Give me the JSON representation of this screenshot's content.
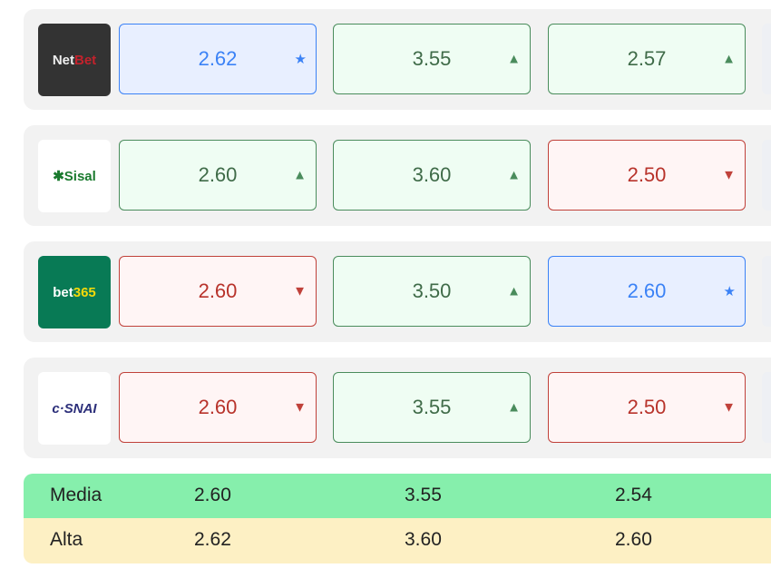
{
  "rows": [
    {
      "bookmaker": "NetBet",
      "odds": [
        {
          "value": "2.62",
          "trend": "best",
          "icon": "star-icon"
        },
        {
          "value": "3.55",
          "trend": "up",
          "icon": "triangle-up-icon"
        },
        {
          "value": "2.57",
          "trend": "up",
          "icon": "triangle-up-icon"
        }
      ]
    },
    {
      "bookmaker": "Sisal",
      "odds": [
        {
          "value": "2.60",
          "trend": "up",
          "icon": "triangle-up-icon"
        },
        {
          "value": "3.60",
          "trend": "up",
          "icon": "triangle-up-icon"
        },
        {
          "value": "2.50",
          "trend": "down",
          "icon": "triangle-down-icon"
        }
      ]
    },
    {
      "bookmaker": "bet365",
      "odds": [
        {
          "value": "2.60",
          "trend": "down",
          "icon": "triangle-down-icon"
        },
        {
          "value": "3.50",
          "trend": "up",
          "icon": "triangle-up-icon"
        },
        {
          "value": "2.60",
          "trend": "best",
          "icon": "star-icon"
        }
      ]
    },
    {
      "bookmaker": "SNAI",
      "odds": [
        {
          "value": "2.60",
          "trend": "down",
          "icon": "triangle-down-icon"
        },
        {
          "value": "3.55",
          "trend": "up",
          "icon": "triangle-up-icon"
        },
        {
          "value": "2.50",
          "trend": "down",
          "icon": "triangle-down-icon"
        }
      ]
    }
  ],
  "summary": [
    {
      "label": "Media",
      "values": [
        "2.60",
        "3.55",
        "2.54"
      ],
      "color": "#86efac"
    },
    {
      "label": "Alta",
      "values": [
        "2.62",
        "3.60",
        "2.60"
      ],
      "color": "#fdf0c4"
    }
  ]
}
